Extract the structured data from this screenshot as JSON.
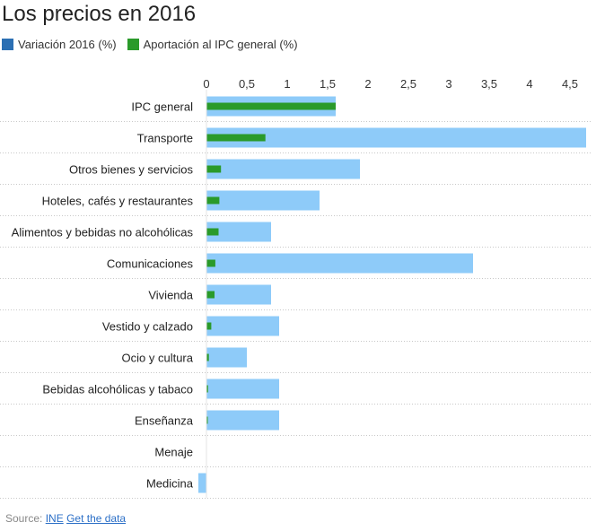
{
  "header": {
    "title": "Los precios en 2016"
  },
  "colors": {
    "variation": "#8ecbf9",
    "contribution": "#2a9a2a",
    "legend_variation": "#2b6fb3",
    "legend_contribution": "#2a9a2a"
  },
  "chart_data": {
    "type": "bar",
    "orientation": "horizontal",
    "title": "Los precios en 2016",
    "xlim": [
      0,
      4.7
    ],
    "ticks": [
      0,
      0.5,
      1,
      1.5,
      2,
      2.5,
      3,
      3.5,
      4,
      4.5
    ],
    "tick_labels": [
      "0",
      "0,5",
      "1",
      "1,5",
      "2",
      "2,5",
      "3",
      "3,5",
      "4",
      "4,5"
    ],
    "categories": [
      "IPC general",
      "Transporte",
      "Otros bienes y servicios",
      "Hoteles, cafés y restaurantes",
      "Alimentos y bebidas no alcohólicas",
      "Comunicaciones",
      "Vivienda",
      "Vestido y calzado",
      "Ocio y cultura",
      "Bebidas alcohólicas y tabaco",
      "Enseñanza",
      "Menaje",
      "Medicina"
    ],
    "series": [
      {
        "name": "Variación 2016 (%)",
        "values": [
          1.6,
          4.7,
          1.9,
          1.4,
          0.8,
          3.3,
          0.8,
          0.9,
          0.5,
          0.9,
          0.9,
          0.0,
          -0.1
        ]
      },
      {
        "name": "Aportación al IPC general (%)",
        "values": [
          1.6,
          0.73,
          0.18,
          0.16,
          0.15,
          0.11,
          0.1,
          0.06,
          0.03,
          0.02,
          0.01,
          0.0,
          0.0
        ]
      }
    ]
  },
  "footer": {
    "source_label": "Source:",
    "source_link": "INE",
    "data_link": "Get the data"
  }
}
